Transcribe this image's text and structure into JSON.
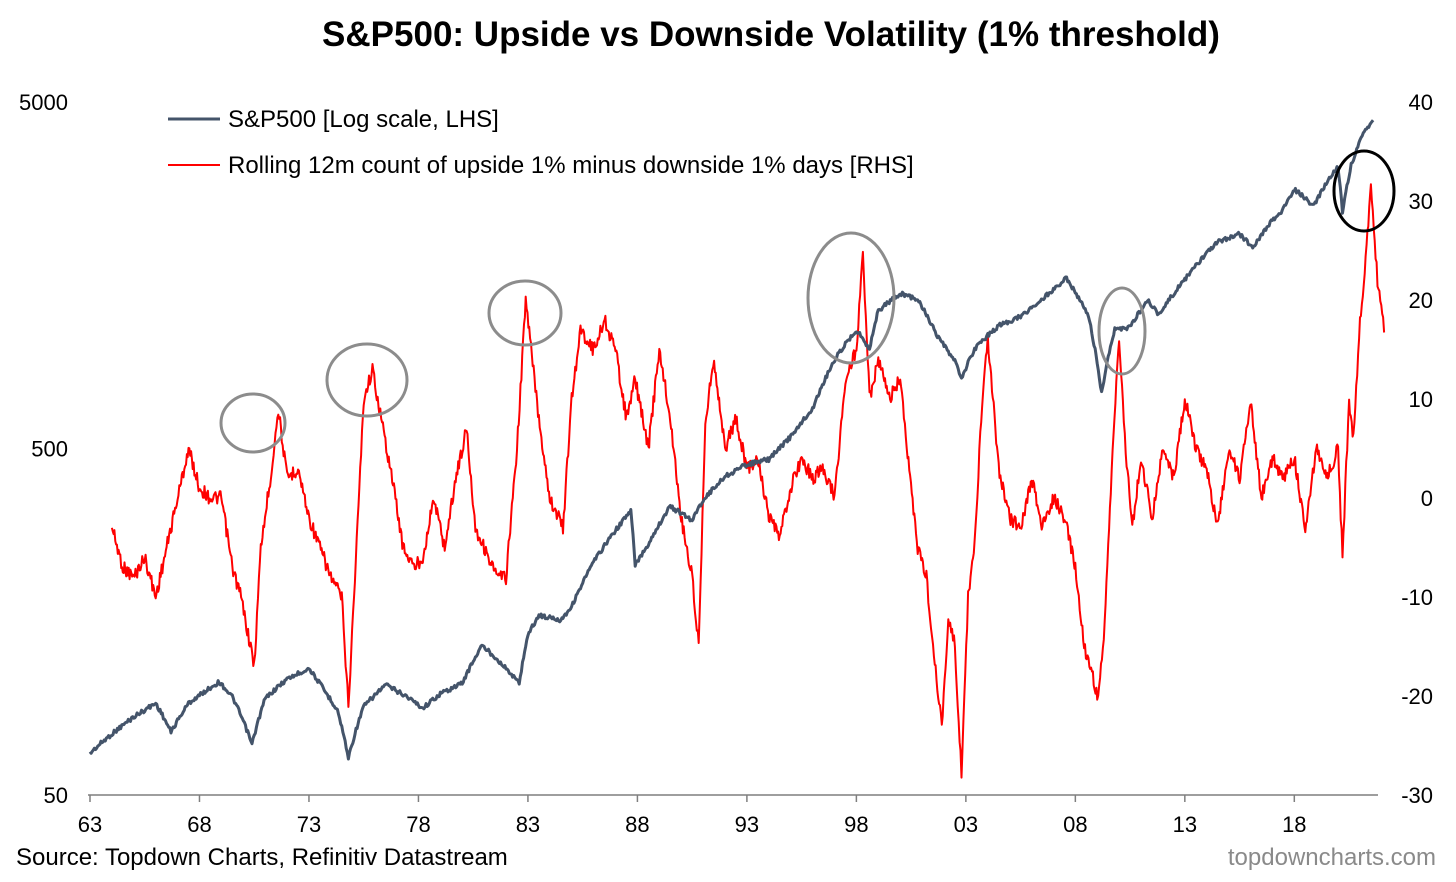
{
  "chart_data": {
    "type": "line",
    "title": "S&P500: Upside vs Downside Volatility (1% threshold)",
    "x_ticks": [
      "63",
      "68",
      "73",
      "78",
      "83",
      "88",
      "93",
      "98",
      "03",
      "08",
      "13",
      "18"
    ],
    "x_range": [
      1963,
      2021
    ],
    "left_axis": {
      "scale": "log",
      "ticks": [
        "5000",
        "500",
        "50"
      ],
      "range": [
        50,
        5000
      ]
    },
    "right_axis": {
      "scale": "linear",
      "ticks": [
        "40",
        "30",
        "20",
        "10",
        "0",
        "-10",
        "-20",
        "-30"
      ],
      "range": [
        -30,
        40
      ]
    },
    "series": [
      {
        "name": "S&P500 [Log scale, LHS]",
        "axis": "left",
        "color": "#44546a",
        "points": [
          [
            1963.0,
            66
          ],
          [
            1964.0,
            75
          ],
          [
            1965.0,
            84
          ],
          [
            1966.0,
            92
          ],
          [
            1966.7,
            76
          ],
          [
            1967.5,
            92
          ],
          [
            1968.9,
            106
          ],
          [
            1969.5,
            96
          ],
          [
            1970.4,
            70
          ],
          [
            1971.0,
            95
          ],
          [
            1972.0,
            108
          ],
          [
            1973.0,
            116
          ],
          [
            1973.8,
            98
          ],
          [
            1974.3,
            88
          ],
          [
            1974.8,
            64
          ],
          [
            1975.5,
            90
          ],
          [
            1976.5,
            104
          ],
          [
            1977.5,
            96
          ],
          [
            1978.2,
            89
          ],
          [
            1979.0,
            98
          ],
          [
            1980.0,
            105
          ],
          [
            1980.9,
            135
          ],
          [
            1981.5,
            125
          ],
          [
            1982.6,
            105
          ],
          [
            1983.0,
            145
          ],
          [
            1983.5,
            165
          ],
          [
            1984.5,
            160
          ],
          [
            1985.0,
            175
          ],
          [
            1986.0,
            235
          ],
          [
            1987.0,
            290
          ],
          [
            1987.7,
            330
          ],
          [
            1987.9,
            230
          ],
          [
            1988.5,
            265
          ],
          [
            1989.5,
            340
          ],
          [
            1990.5,
            310
          ],
          [
            1991.0,
            355
          ],
          [
            1992.0,
            415
          ],
          [
            1993.0,
            450
          ],
          [
            1994.0,
            465
          ],
          [
            1995.0,
            540
          ],
          [
            1996.0,
            650
          ],
          [
            1997.0,
            900
          ],
          [
            1998.0,
            1100
          ],
          [
            1998.6,
            970
          ],
          [
            1999.0,
            1250
          ],
          [
            2000.0,
            1400
          ],
          [
            2000.8,
            1350
          ],
          [
            2001.7,
            1050
          ],
          [
            2002.5,
            890
          ],
          [
            2002.8,
            800
          ],
          [
            2003.5,
            990
          ],
          [
            2004.5,
            1130
          ],
          [
            2005.5,
            1200
          ],
          [
            2006.5,
            1350
          ],
          [
            2007.6,
            1550
          ],
          [
            2008.6,
            1200
          ],
          [
            2009.2,
            720
          ],
          [
            2009.8,
            1100
          ],
          [
            2010.5,
            1120
          ],
          [
            2011.3,
            1340
          ],
          [
            2011.8,
            1220
          ],
          [
            2012.5,
            1400
          ],
          [
            2013.5,
            1680
          ],
          [
            2014.5,
            1970
          ],
          [
            2015.5,
            2080
          ],
          [
            2016.1,
            1900
          ],
          [
            2016.8,
            2200
          ],
          [
            2017.5,
            2450
          ],
          [
            2018.0,
            2800
          ],
          [
            2018.9,
            2500
          ],
          [
            2019.5,
            2950
          ],
          [
            2020.0,
            3250
          ],
          [
            2020.2,
            2400
          ],
          [
            2020.6,
            3300
          ],
          [
            2021.2,
            4100
          ],
          [
            2021.6,
            4450
          ]
        ]
      },
      {
        "name": "Rolling 12m count of upside 1% minus downside 1% days [RHS]",
        "axis": "right",
        "color": "#ff0000",
        "points": [
          [
            1964.0,
            -3
          ],
          [
            1964.5,
            -7
          ],
          [
            1965.0,
            -8
          ],
          [
            1965.5,
            -6
          ],
          [
            1966.0,
            -10
          ],
          [
            1966.5,
            -5
          ],
          [
            1967.0,
            0
          ],
          [
            1967.5,
            5
          ],
          [
            1968.0,
            1
          ],
          [
            1968.5,
            0
          ],
          [
            1969.0,
            0
          ],
          [
            1969.5,
            -7
          ],
          [
            1969.9,
            -10
          ],
          [
            1970.5,
            -17
          ],
          [
            1970.8,
            -5
          ],
          [
            1971.3,
            3
          ],
          [
            1971.6,
            9
          ],
          [
            1972.0,
            2
          ],
          [
            1972.5,
            3
          ],
          [
            1973.0,
            -2
          ],
          [
            1973.5,
            -5
          ],
          [
            1974.0,
            -8
          ],
          [
            1974.5,
            -10
          ],
          [
            1974.8,
            -21
          ],
          [
            1975.1,
            -8
          ],
          [
            1975.5,
            10
          ],
          [
            1975.9,
            13
          ],
          [
            1976.3,
            8
          ],
          [
            1976.8,
            2
          ],
          [
            1977.3,
            -5
          ],
          [
            1977.8,
            -7
          ],
          [
            1978.2,
            -6
          ],
          [
            1978.7,
            0
          ],
          [
            1979.2,
            -5
          ],
          [
            1979.7,
            2
          ],
          [
            1980.2,
            7
          ],
          [
            1980.6,
            -3
          ],
          [
            1981.0,
            -5
          ],
          [
            1981.6,
            -8
          ],
          [
            1982.0,
            -8
          ],
          [
            1982.5,
            5
          ],
          [
            1982.9,
            20
          ],
          [
            1983.5,
            8
          ],
          [
            1984.0,
            0
          ],
          [
            1984.6,
            -3
          ],
          [
            1985.0,
            10
          ],
          [
            1985.4,
            17
          ],
          [
            1986.0,
            15
          ],
          [
            1986.5,
            18
          ],
          [
            1987.0,
            15
          ],
          [
            1987.5,
            8
          ],
          [
            1987.9,
            12
          ],
          [
            1988.5,
            5
          ],
          [
            1989.0,
            15
          ],
          [
            1989.5,
            8
          ],
          [
            1990.0,
            -2
          ],
          [
            1990.5,
            -8
          ],
          [
            1990.8,
            -15
          ],
          [
            1991.1,
            8
          ],
          [
            1991.5,
            14
          ],
          [
            1992.0,
            5
          ],
          [
            1992.5,
            8
          ],
          [
            1993.0,
            3
          ],
          [
            1993.5,
            4
          ],
          [
            1994.0,
            -2
          ],
          [
            1994.5,
            -4
          ],
          [
            1995.0,
            1
          ],
          [
            1995.5,
            4
          ],
          [
            1996.0,
            2
          ],
          [
            1996.5,
            3
          ],
          [
            1997.0,
            0
          ],
          [
            1997.5,
            12
          ],
          [
            1998.0,
            15
          ],
          [
            1998.3,
            25
          ],
          [
            1998.6,
            10
          ],
          [
            1999.0,
            14
          ],
          [
            1999.5,
            10
          ],
          [
            2000.0,
            12
          ],
          [
            2000.3,
            5
          ],
          [
            2000.8,
            -5
          ],
          [
            2001.2,
            -8
          ],
          [
            2001.5,
            -15
          ],
          [
            2001.9,
            -23
          ],
          [
            2002.2,
            -12
          ],
          [
            2002.5,
            -15
          ],
          [
            2002.8,
            -28
          ],
          [
            2003.1,
            -10
          ],
          [
            2003.4,
            -5
          ],
          [
            2003.7,
            8
          ],
          [
            2004.0,
            16
          ],
          [
            2004.5,
            3
          ],
          [
            2005.0,
            -2
          ],
          [
            2005.5,
            -3
          ],
          [
            2006.0,
            2
          ],
          [
            2006.5,
            -3
          ],
          [
            2007.0,
            0
          ],
          [
            2007.5,
            -2
          ],
          [
            2008.0,
            -7
          ],
          [
            2008.4,
            -15
          ],
          [
            2008.8,
            -18
          ],
          [
            2009.0,
            -20
          ],
          [
            2009.3,
            -15
          ],
          [
            2009.7,
            5
          ],
          [
            2010.0,
            16
          ],
          [
            2010.3,
            5
          ],
          [
            2010.6,
            -3
          ],
          [
            2011.0,
            4
          ],
          [
            2011.5,
            -2
          ],
          [
            2012.0,
            5
          ],
          [
            2012.5,
            2
          ],
          [
            2013.0,
            10
          ],
          [
            2013.5,
            5
          ],
          [
            2014.0,
            3
          ],
          [
            2014.5,
            -3
          ],
          [
            2015.0,
            5
          ],
          [
            2015.5,
            2
          ],
          [
            2016.0,
            10
          ],
          [
            2016.5,
            0
          ],
          [
            2017.0,
            4
          ],
          [
            2017.5,
            2
          ],
          [
            2018.0,
            4
          ],
          [
            2018.5,
            -3
          ],
          [
            2019.0,
            5
          ],
          [
            2019.5,
            2
          ],
          [
            2020.0,
            5
          ],
          [
            2020.2,
            -6
          ],
          [
            2020.5,
            10
          ],
          [
            2020.7,
            6
          ],
          [
            2021.0,
            18
          ],
          [
            2021.3,
            25
          ],
          [
            2021.5,
            32
          ],
          [
            2021.8,
            22
          ],
          [
            2022.1,
            17
          ]
        ]
      }
    ],
    "legend_position": "top-left",
    "source": "Source: Topdown Charts, Refinitiv Datastream",
    "watermark": "topdowncharts.com"
  }
}
